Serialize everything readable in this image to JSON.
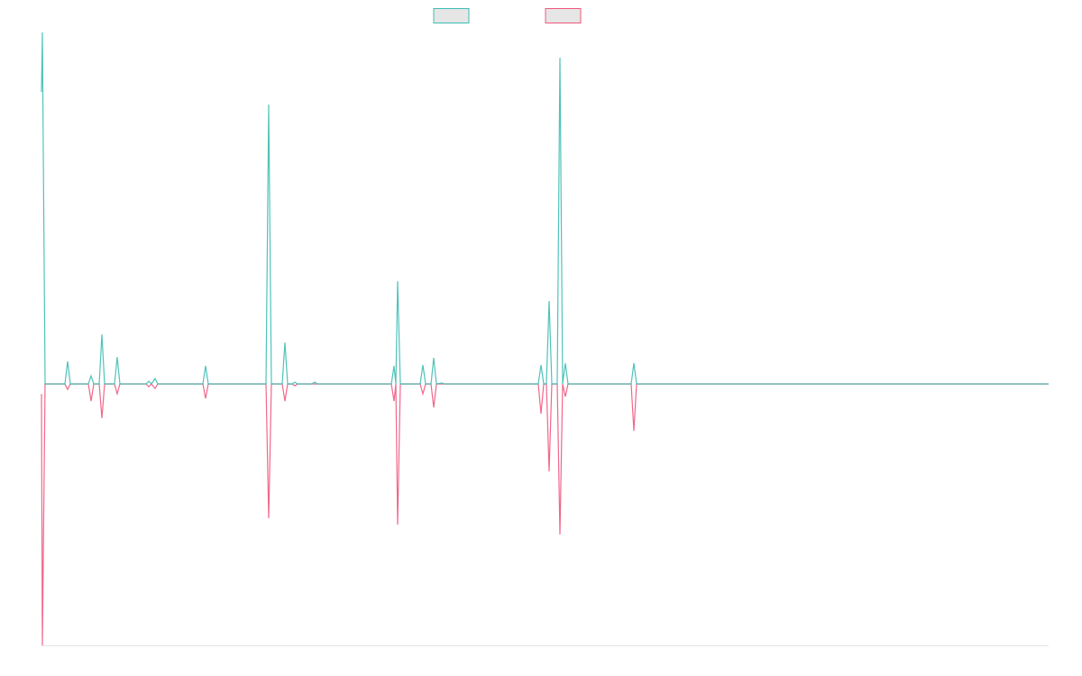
{
  "chart_data": {
    "type": "line",
    "x": [
      0,
      1,
      4,
      26,
      29,
      32,
      52,
      55,
      58,
      64,
      67,
      70,
      81,
      84,
      87,
      116,
      119,
      122,
      126,
      129,
      179,
      182,
      185,
      249,
      252,
      255,
      267,
      270,
      273,
      278,
      281,
      284,
      300,
      303,
      306,
      388,
      391,
      393,
      395,
      398,
      420,
      423,
      426,
      432,
      435,
      438,
      444,
      447,
      551,
      554,
      557,
      560,
      563,
      566,
      572,
      575,
      578,
      581,
      584,
      654,
      657,
      660,
      1117
    ],
    "xlim": [
      0,
      1117
    ],
    "ylim": [
      -290,
      390
    ],
    "series": [
      {
        "color": "#3dbdb3",
        "values": [
          324,
          390,
          0,
          0,
          25,
          0,
          0,
          9,
          0,
          0,
          55,
          0,
          0,
          30,
          0,
          0,
          3,
          0,
          6,
          0,
          0,
          20,
          0,
          0,
          310,
          0,
          0,
          46,
          0,
          0,
          2,
          0,
          0,
          2,
          0,
          0,
          20,
          0,
          114,
          0,
          0,
          21,
          0,
          0,
          29,
          0,
          1,
          0,
          0,
          21,
          0,
          0,
          92,
          0,
          0,
          362,
          0,
          23,
          0,
          0,
          23,
          0,
          0
        ]
      },
      {
        "color": "#f0577f",
        "values": [
          -11,
          -290,
          0,
          0,
          -6,
          0,
          0,
          -19,
          0,
          0,
          -38,
          0,
          0,
          -11,
          0,
          0,
          -3,
          0,
          -5,
          0,
          0,
          -16,
          0,
          0,
          -149,
          0,
          0,
          -19,
          0,
          0,
          -2,
          0,
          0,
          0,
          0,
          0,
          -19,
          0,
          -156,
          0,
          0,
          -11,
          0,
          0,
          -26,
          0,
          0,
          0,
          0,
          -33,
          0,
          0,
          -97,
          0,
          0,
          -167,
          0,
          -14,
          0,
          0,
          -52,
          0,
          0
        ]
      }
    ]
  }
}
